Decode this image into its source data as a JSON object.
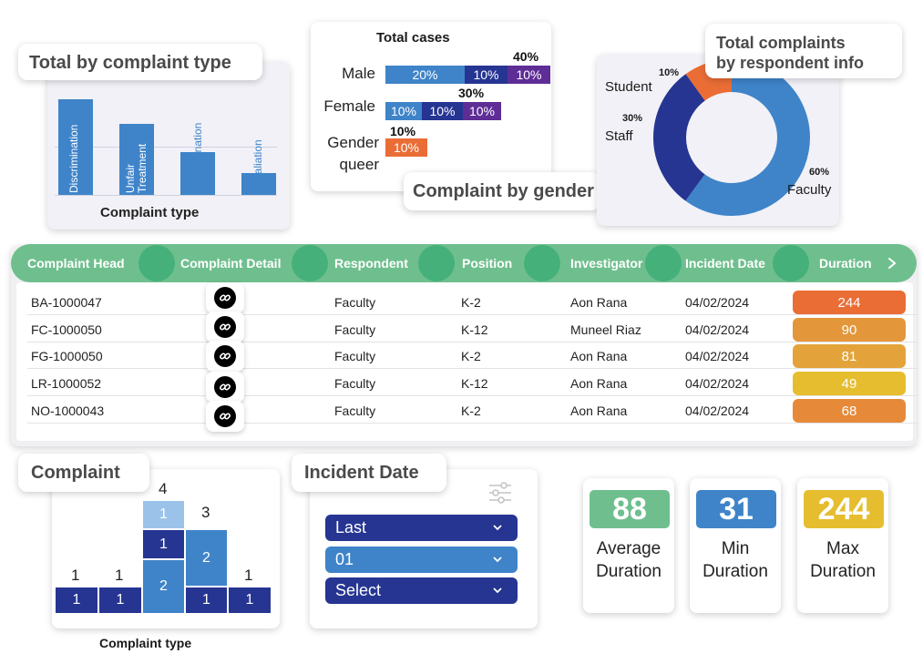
{
  "complaint_type_chart": {
    "title": "Total by complaint type",
    "xlabel": "Complaint type",
    "bars": [
      {
        "label": "Discrimination"
      },
      {
        "label_line1": "Unfair",
        "label_line2": "Treatment"
      },
      {
        "label": "Discrimination"
      },
      {
        "label": "Retaliation"
      }
    ]
  },
  "gender_chart": {
    "title": "Total cases",
    "panel_label": "Complaint by gender",
    "rows": [
      {
        "label": "Male",
        "total": "40%",
        "segments": [
          "20%",
          "10%",
          "10%"
        ]
      },
      {
        "label": "Female",
        "total": "30%",
        "segments": [
          "10%",
          "10%",
          "10%"
        ]
      },
      {
        "label_line1": "Gender",
        "label_line2": "queer",
        "total": "10%",
        "segments": [
          "10%"
        ]
      }
    ]
  },
  "respondent_chart": {
    "title_line1": "Total complaints",
    "title_line2": "by respondent info",
    "slices": [
      {
        "label": "Faculty",
        "value": "60%"
      },
      {
        "label": "Staff",
        "value": "30%"
      },
      {
        "label": "Student",
        "value": "10%"
      }
    ]
  },
  "table": {
    "columns": [
      "Complaint Head",
      "Complaint Detail",
      "Respondent",
      "Position",
      "Investigator",
      "Incident Date",
      "Duration"
    ],
    "rows": [
      {
        "head": "BA-1000047",
        "respondent": "Faculty",
        "position": "K-2",
        "investigator": "Aon Rana",
        "date": "04/02/2024",
        "duration": "244"
      },
      {
        "head": "FC-1000050",
        "respondent": "Faculty",
        "position": "K-12",
        "investigator": "Muneel Riaz",
        "date": "04/02/2024",
        "duration": "90"
      },
      {
        "head": "FG-1000050",
        "respondent": "Faculty",
        "position": "K-2",
        "investigator": "Aon Rana",
        "date": "04/02/2024",
        "duration": "81"
      },
      {
        "head": "LR-1000052",
        "respondent": "Faculty",
        "position": "K-12",
        "investigator": "Aon Rana",
        "date": "04/02/2024",
        "duration": "49"
      },
      {
        "head": "NO-1000043",
        "respondent": "Faculty",
        "position": "K-2",
        "investigator": "Aon Rana",
        "date": "04/02/2024",
        "duration": "68"
      }
    ]
  },
  "complaint_histogram": {
    "title": "Complaint",
    "xlabel": "Complaint type",
    "totals": [
      "1",
      "1",
      "4",
      "3",
      "1"
    ],
    "cells": {
      "c1": "1",
      "c2": "1",
      "c3_top": "1",
      "c3_mid": "1",
      "c3_bot": "2",
      "c4_top": "2",
      "c4_bot": "1",
      "c5": "1"
    }
  },
  "incident_date": {
    "title": "Incident Date",
    "selects": [
      "Last",
      "01",
      "Select"
    ]
  },
  "kpis": [
    {
      "value": "88",
      "line1": "Average",
      "line2": "Duration"
    },
    {
      "value": "31",
      "line1": "Min",
      "line2": "Duration"
    },
    {
      "value": "244",
      "line1": "Max",
      "line2": "Duration"
    }
  ],
  "colors": {
    "blue": "#3f84c9",
    "navy": "#263592",
    "purple": "#5e2d96",
    "orange": "#ea6d36",
    "green": "#6fbf8e",
    "yellow": "#e6bd2f"
  }
}
